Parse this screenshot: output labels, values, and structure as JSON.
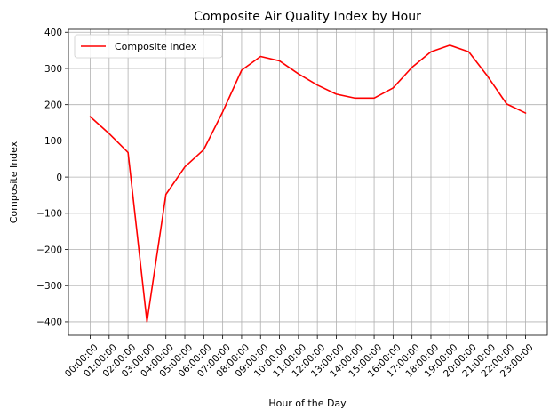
{
  "chart_data": {
    "type": "line",
    "title": "Composite Air Quality Index by Hour",
    "xlabel": "Hour of the Day",
    "ylabel": "Composite Index",
    "categories": [
      "00:00:00",
      "01:00:00",
      "02:00:00",
      "03:00:00",
      "04:00:00",
      "05:00:00",
      "06:00:00",
      "07:00:00",
      "08:00:00",
      "09:00:00",
      "10:00:00",
      "11:00:00",
      "12:00:00",
      "13:00:00",
      "14:00:00",
      "15:00:00",
      "16:00:00",
      "17:00:00",
      "18:00:00",
      "19:00:00",
      "20:00:00",
      "21:00:00",
      "22:00:00",
      "23:00:00"
    ],
    "series": [
      {
        "name": "Composite Index",
        "color": "#ff0000",
        "values": [
          167,
          120,
          68,
          -400,
          -48,
          28,
          76,
          180,
          295,
          333,
          321,
          285,
          254,
          229,
          218,
          218,
          246,
          303,
          346,
          364,
          346,
          278,
          202,
          177
        ]
      }
    ],
    "ylim": [
      -437,
      408
    ],
    "yticks": [
      -400,
      -300,
      -200,
      -100,
      0,
      100,
      200,
      300,
      400
    ],
    "ytick_labels": [
      "−400",
      "−300",
      "−200",
      "−100",
      "0",
      "100",
      "200",
      "300",
      "400"
    ],
    "grid": true,
    "legend": "upper-left",
    "xtick_rotation": 45
  }
}
